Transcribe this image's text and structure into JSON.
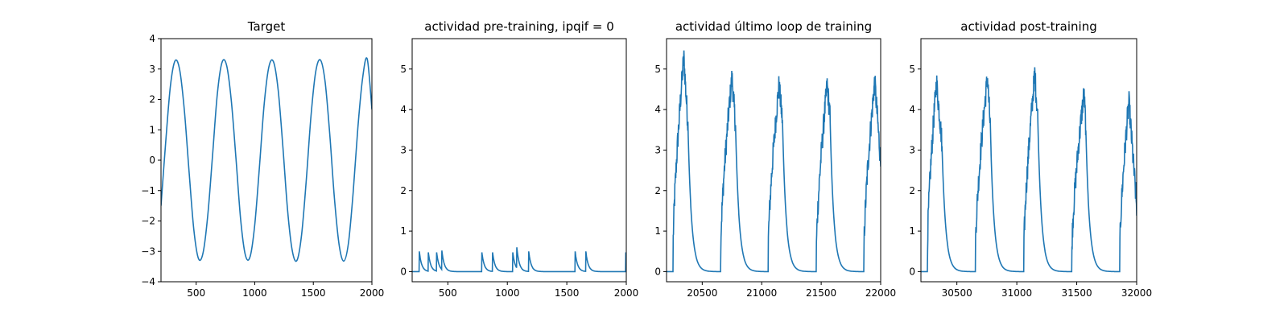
{
  "figure": {
    "background": "#ffffff",
    "line_color": "#1f77b4"
  },
  "chart_data": [
    {
      "type": "line",
      "title": "Target",
      "xlim": [
        200,
        2000
      ],
      "ylim": [
        -4,
        4
      ],
      "xticks": [
        500,
        1000,
        1500,
        2000
      ],
      "yticks": [
        -4,
        -3,
        -2,
        -1,
        0,
        1,
        2,
        3,
        4
      ],
      "tick_labels_x": [
        "500",
        "1000",
        "1500",
        "2000"
      ],
      "tick_labels_y": [
        "−4",
        "−3",
        "−2",
        "−1",
        "0",
        "1",
        "2",
        "3",
        "4"
      ],
      "series": [
        {
          "x": [
            200,
            240,
            280,
            320,
            360,
            400,
            440,
            480,
            520,
            560,
            600,
            640,
            680,
            720,
            760,
            800,
            840,
            880,
            920,
            960,
            1000,
            1040,
            1080,
            1120,
            1160,
            1200,
            1240,
            1280,
            1320,
            1360,
            1400,
            1440,
            1480,
            1520,
            1560,
            1600,
            1640,
            1680,
            1720,
            1760,
            1800,
            1840,
            1880,
            1920,
            1960,
            2000
          ],
          "y": [
            -1.5,
            0.59,
            2.43,
            3.27,
            2.96,
            1.61,
            -0.4,
            -2.28,
            -3.24,
            -3.03,
            -1.78,
            0.16,
            2.15,
            3.21,
            3.12,
            1.96,
            0.05,
            -1.96,
            -3.12,
            -3.18,
            -2.13,
            -0.23,
            1.82,
            3.06,
            3.24,
            2.31,
            0.45,
            -1.63,
            -2.97,
            -3.3,
            -2.45,
            -0.65,
            1.45,
            2.9,
            3.3,
            2.6,
            0.87,
            -1.25,
            -2.78,
            -3.32,
            -2.72,
            -1.06,
            1.06,
            2.68,
            3.33,
            1.67
          ]
        }
      ]
    },
    {
      "type": "line",
      "title": "actividad pre-training, ipqif = 0",
      "xlim": [
        200,
        2000
      ],
      "ylim": [
        -0.25,
        5.75
      ],
      "xticks": [
        500,
        1000,
        1500,
        2000
      ],
      "yticks": [
        0,
        1,
        2,
        3,
        4,
        5
      ],
      "tick_labels_x": [
        "500",
        "1000",
        "1500",
        "2000"
      ],
      "tick_labels_y": [
        "0",
        "1",
        "2",
        "3",
        "4",
        "5"
      ],
      "spikes": [
        {
          "t": 260,
          "a": 0.5
        },
        {
          "t": 335,
          "a": 0.5
        },
        {
          "t": 405,
          "a": 0.5
        },
        {
          "t": 450,
          "a": 0.52
        },
        {
          "t": 785,
          "a": 0.5
        },
        {
          "t": 875,
          "a": 0.5
        },
        {
          "t": 1045,
          "a": 0.5
        },
        {
          "t": 1080,
          "a": 0.6
        },
        {
          "t": 1180,
          "a": 0.5
        },
        {
          "t": 1570,
          "a": 0.5
        },
        {
          "t": 1660,
          "a": 0.5
        },
        {
          "t": 1995,
          "a": 0.5
        }
      ],
      "baseline": 0,
      "decay_scale": 20
    },
    {
      "type": "line",
      "title": "actividad último loop de training",
      "xlim": [
        20200,
        22000
      ],
      "ylim": [
        -0.25,
        5.75
      ],
      "xticks": [
        20500,
        21000,
        21500,
        22000
      ],
      "yticks": [
        0,
        1,
        2,
        3,
        4,
        5
      ],
      "tick_labels_x": [
        "20500",
        "21000",
        "21500",
        "22000"
      ],
      "tick_labels_y": [
        "0",
        "1",
        "2",
        "3",
        "4",
        "5"
      ],
      "bursts": [
        {
          "start": 20255,
          "peak_t": 20345,
          "peak": 5.3,
          "end_t": 20380,
          "end_v": 3.6
        },
        {
          "start": 20655,
          "peak_t": 20750,
          "peak": 4.8,
          "end_t": 20780,
          "end_v": 3.6
        },
        {
          "start": 21055,
          "peak_t": 21145,
          "peak": 4.6,
          "end_t": 21175,
          "end_v": 3.7
        },
        {
          "start": 21460,
          "peak_t": 21550,
          "peak": 4.6,
          "end_t": 21575,
          "end_v": 3.8
        },
        {
          "start": 21860,
          "peak_t": 21950,
          "peak": 4.7,
          "end_t": 22000,
          "end_v": 2.7
        }
      ],
      "decay_scale": 30
    },
    {
      "type": "line",
      "title": "actividad post-training",
      "xlim": [
        30200,
        32000
      ],
      "ylim": [
        -0.25,
        5.75
      ],
      "xticks": [
        30500,
        31000,
        31500,
        32000
      ],
      "yticks": [
        0,
        1,
        2,
        3,
        4,
        5
      ],
      "tick_labels_x": [
        "30500",
        "31000",
        "31500",
        "32000"
      ],
      "tick_labels_y": [
        "0",
        "1",
        "2",
        "3",
        "4",
        "5"
      ],
      "bursts": [
        {
          "start": 30255,
          "peak_t": 30330,
          "peak": 4.7,
          "end_t": 30375,
          "end_v": 3.2
        },
        {
          "start": 30655,
          "peak_t": 30755,
          "peak": 4.8,
          "end_t": 30780,
          "end_v": 3.5
        },
        {
          "start": 31060,
          "peak_t": 31150,
          "peak": 4.9,
          "end_t": 31175,
          "end_v": 3.8
        },
        {
          "start": 31460,
          "peak_t": 31560,
          "peak": 4.4,
          "end_t": 31575,
          "end_v": 3.6
        },
        {
          "start": 31860,
          "peak_t": 31935,
          "peak": 4.2,
          "end_t": 32000,
          "end_v": 1.6
        }
      ],
      "decay_scale": 30
    }
  ]
}
